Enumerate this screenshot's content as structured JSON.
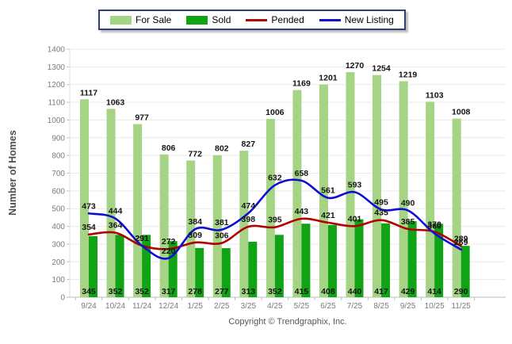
{
  "axes": {
    "y_title": "Number of Homes"
  },
  "footer": {
    "copyright": "Copyright © Trendgraphix, Inc."
  },
  "chart_data": {
    "type": "bar+line",
    "title": "",
    "xlabel": "",
    "ylabel": "Number of Homes",
    "ylim": [
      0,
      1400
    ],
    "ytick_step": 100,
    "grid": true,
    "legend_position": "top-center",
    "categories": [
      "9/24",
      "10/24",
      "11/24",
      "12/24",
      "1/25",
      "2/25",
      "3/25",
      "4/25",
      "5/25",
      "6/25",
      "7/25",
      "8/25",
      "9/25",
      "10/25",
      "11/25"
    ],
    "series": [
      {
        "name": "For Sale",
        "type": "bar",
        "color": "#a5d584",
        "values": [
          1117,
          1063,
          977,
          806,
          772,
          802,
          827,
          1006,
          1169,
          1201,
          1270,
          1254,
          1219,
          1103,
          1008
        ]
      },
      {
        "name": "Sold",
        "type": "bar",
        "color": "#0fa315",
        "values": [
          345,
          352,
          352,
          317,
          278,
          277,
          313,
          352,
          415,
          408,
          440,
          417,
          429,
          414,
          290
        ]
      },
      {
        "name": "Pended",
        "type": "line",
        "color": "#b30000",
        "values": [
          354,
          364,
          291,
          272,
          309,
          306,
          398,
          395,
          443,
          421,
          401,
          435,
          385,
          370,
          289
        ]
      },
      {
        "name": "New Listing",
        "type": "line",
        "color": "#0d0dd6",
        "values": [
          473,
          444,
          291,
          220,
          384,
          381,
          474,
          632,
          658,
          561,
          593,
          495,
          490,
          360,
          269
        ]
      }
    ]
  }
}
